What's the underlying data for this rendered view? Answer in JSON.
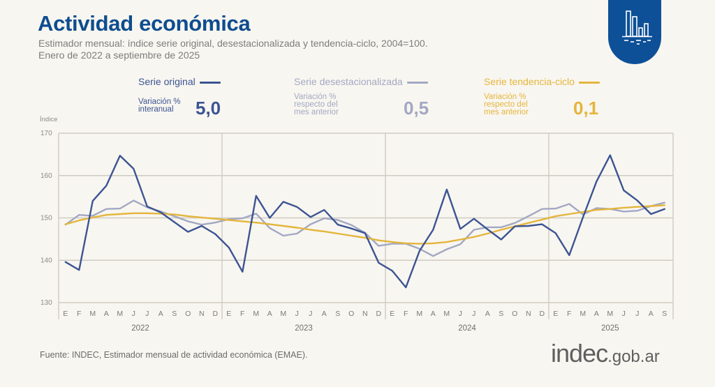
{
  "header": {
    "title": "Actividad económica",
    "subtitle_line1": "Estimador mensual: índice serie original, desestacionalizada y tendencia-ciclo, 2004=100.",
    "subtitle_line2": "Enero de 2022 a septiembre de 2025",
    "badge_icon": "bar-chart-icon"
  },
  "legend": [
    {
      "name": "Serie original",
      "desc_lines": [
        "Variación %",
        "interanual"
      ],
      "value": "5,0",
      "color": "#3c5493"
    },
    {
      "name": "Serie desestacionalizada",
      "desc_lines": [
        "Variación %",
        "respecto del",
        "mes anterior"
      ],
      "value": "0,5",
      "color": "#a2a8c3"
    },
    {
      "name": "Serie tendencia-ciclo",
      "desc_lines": [
        "Variación %",
        "respecto del",
        "mes anterior"
      ],
      "value": "0,1",
      "color": "#e4b53c"
    }
  ],
  "footer": {
    "source": "Fuente: INDEC, Estimador mensual de actividad económica (EMAE).",
    "logo_main": "indec",
    "logo_domain": ".gob.ar"
  },
  "chart_data": {
    "type": "line",
    "ylabel": "Índice",
    "xlabel": "",
    "ylim": [
      130,
      170
    ],
    "yticks": [
      130,
      140,
      150,
      160,
      170
    ],
    "grid": true,
    "years": [
      {
        "label": "2022",
        "months": 12
      },
      {
        "label": "2023",
        "months": 12
      },
      {
        "label": "2024",
        "months": 12
      },
      {
        "label": "2025",
        "months": 9
      }
    ],
    "month_labels": [
      "E",
      "F",
      "M",
      "A",
      "M",
      "J",
      "J",
      "A",
      "S",
      "O",
      "N",
      "D"
    ],
    "series": [
      {
        "name": "Serie original",
        "color": "#3c5493",
        "values": [
          139.6,
          137.7,
          154.0,
          157.6,
          164.7,
          161.6,
          152.7,
          151.3,
          149.0,
          146.7,
          148.1,
          146.2,
          143.0,
          137.3,
          155.2,
          150.0,
          153.8,
          152.6,
          150.2,
          151.9,
          148.4,
          147.5,
          146.4,
          139.4,
          137.5,
          133.6,
          142.2,
          147.2,
          156.7,
          147.4,
          149.8,
          147.3,
          144.9,
          148.0,
          148.1,
          148.5,
          146.4,
          141.2,
          150.1,
          158.6,
          164.8,
          156.5,
          154.1,
          150.9,
          152.1
        ]
      },
      {
        "name": "Serie desestacionalizada",
        "color": "#a2a8c3",
        "values": [
          148.4,
          150.7,
          150.5,
          152.1,
          152.2,
          154.1,
          152.5,
          151.5,
          150.4,
          149.2,
          148.4,
          148.9,
          149.7,
          149.9,
          151.0,
          147.6,
          145.8,
          146.3,
          148.5,
          149.9,
          149.5,
          148.3,
          146.5,
          143.4,
          143.9,
          143.9,
          142.7,
          141.0,
          142.6,
          143.8,
          147.2,
          147.8,
          147.8,
          148.8,
          150.4,
          152.1,
          152.2,
          153.3,
          150.8,
          152.3,
          152.1,
          151.5,
          151.7,
          152.8,
          153.6
        ]
      },
      {
        "name": "Serie tendencia-ciclo",
        "color": "#e4b53c",
        "values": [
          148.5,
          149.4,
          150.1,
          150.7,
          150.9,
          151.1,
          151.1,
          151.0,
          150.8,
          150.4,
          150.1,
          149.8,
          149.5,
          149.2,
          148.9,
          148.5,
          148.1,
          147.7,
          147.2,
          146.8,
          146.3,
          145.8,
          145.3,
          144.7,
          144.3,
          144.0,
          143.9,
          144.0,
          144.3,
          144.9,
          145.5,
          146.3,
          147.2,
          148.0,
          148.8,
          149.6,
          150.4,
          150.9,
          151.4,
          151.9,
          152.1,
          152.4,
          152.6,
          152.8,
          153.0
        ]
      }
    ]
  }
}
